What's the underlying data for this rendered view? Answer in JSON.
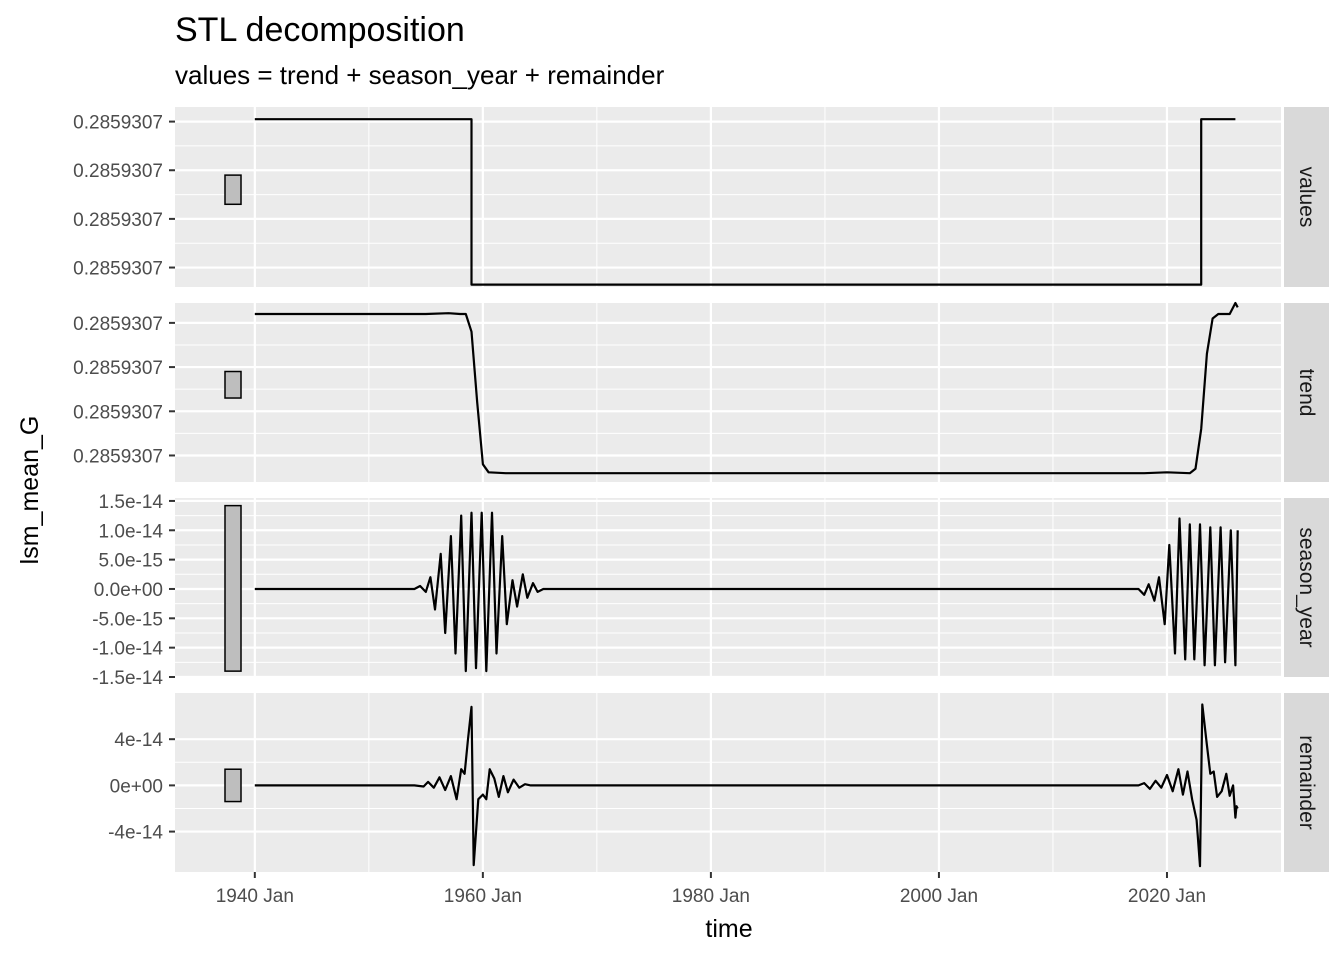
{
  "chart_data": {
    "type": "line",
    "title": "STL decomposition",
    "subtitle": "values = trend + season_year + remainder",
    "xlabel": "time",
    "ylabel": "lsm_mean_G",
    "x_ticks": [
      "1940 Jan",
      "1960 Jan",
      "1980 Jan",
      "2000 Jan",
      "2020 Jan"
    ],
    "x_tick_years": [
      1940,
      1960,
      1980,
      2000,
      2020
    ],
    "x_range": [
      1933,
      2030
    ],
    "panels": [
      {
        "name": "values",
        "y_ticks": [
          "0.2859307",
          "0.2859307",
          "0.2859307",
          "0.2859307"
        ],
        "y_tick_positions": [
          3,
          2,
          1,
          0
        ],
        "y_range": [
          -0.4,
          3.3
        ],
        "range_bar": [
          1.3,
          1.9
        ],
        "series": [
          {
            "x": 1940.0,
            "y": 3.05
          },
          {
            "x": 1959.0,
            "y": 3.05
          },
          {
            "x": 1959.0,
            "y": -0.35
          },
          {
            "x": 2023.0,
            "y": -0.35
          },
          {
            "x": 2023.0,
            "y": 3.05
          },
          {
            "x": 2026.0,
            "y": 3.05
          }
        ]
      },
      {
        "name": "trend",
        "y_ticks": [
          "0.2859307",
          "0.2859307",
          "0.2859307",
          "0.2859307"
        ],
        "y_tick_positions": [
          3,
          2,
          1,
          0
        ],
        "y_range": [
          -0.6,
          3.45
        ],
        "range_bar": [
          1.3,
          1.9
        ],
        "series": [
          {
            "x": 1940.0,
            "y": 3.2
          },
          {
            "x": 1955.0,
            "y": 3.2
          },
          {
            "x": 1957.0,
            "y": 3.22
          },
          {
            "x": 1958.0,
            "y": 3.2
          },
          {
            "x": 1958.5,
            "y": 3.2
          },
          {
            "x": 1959.0,
            "y": 2.8
          },
          {
            "x": 1959.5,
            "y": 1.2
          },
          {
            "x": 1960.0,
            "y": -0.2
          },
          {
            "x": 1960.5,
            "y": -0.38
          },
          {
            "x": 1962.0,
            "y": -0.4
          },
          {
            "x": 2018.0,
            "y": -0.4
          },
          {
            "x": 2020.0,
            "y": -0.38
          },
          {
            "x": 2022.0,
            "y": -0.4
          },
          {
            "x": 2022.5,
            "y": -0.3
          },
          {
            "x": 2023.0,
            "y": 0.6
          },
          {
            "x": 2023.5,
            "y": 2.3
          },
          {
            "x": 2024.0,
            "y": 3.1
          },
          {
            "x": 2024.5,
            "y": 3.2
          },
          {
            "x": 2025.5,
            "y": 3.2
          },
          {
            "x": 2026.0,
            "y": 3.45
          },
          {
            "x": 2026.2,
            "y": 3.35
          }
        ]
      },
      {
        "name": "season_year",
        "y_ticks": [
          "1.5e-14",
          "1.0e-14",
          "5.0e-15",
          "0.0e+00",
          "-5.0e-15",
          "-1.0e-14",
          "-1.5e-14"
        ],
        "y_tick_positions": [
          1.5e-14,
          1e-14,
          5e-15,
          0,
          -5e-15,
          -1e-14,
          -1.5e-14
        ],
        "y_range": [
          -1.5e-14,
          1.55e-14
        ],
        "range_bar": [
          -1.4e-14,
          1.42e-14
        ],
        "series": [
          {
            "x": 1940.0,
            "y": 0
          },
          {
            "x": 1954.0,
            "y": 0
          },
          {
            "x": 1954.5,
            "y": 5e-16
          },
          {
            "x": 1955.0,
            "y": -5e-16
          },
          {
            "x": 1955.4,
            "y": 2e-15
          },
          {
            "x": 1955.8,
            "y": -3.5e-15
          },
          {
            "x": 1956.3,
            "y": 6e-15
          },
          {
            "x": 1956.7,
            "y": -7.5e-15
          },
          {
            "x": 1957.2,
            "y": 9e-15
          },
          {
            "x": 1957.6,
            "y": -1.1e-14
          },
          {
            "x": 1958.1,
            "y": 1.25e-14
          },
          {
            "x": 1958.5,
            "y": -1.4e-14
          },
          {
            "x": 1959.0,
            "y": 1.3e-14
          },
          {
            "x": 1959.4,
            "y": -1.35e-14
          },
          {
            "x": 1959.9,
            "y": 1.3e-14
          },
          {
            "x": 1960.3,
            "y": -1.4e-14
          },
          {
            "x": 1960.8,
            "y": 1.3e-14
          },
          {
            "x": 1961.2,
            "y": -1.1e-14
          },
          {
            "x": 1961.7,
            "y": 9e-15
          },
          {
            "x": 1962.1,
            "y": -6e-15
          },
          {
            "x": 1962.6,
            "y": 1.5e-15
          },
          {
            "x": 1963.0,
            "y": -3e-15
          },
          {
            "x": 1963.5,
            "y": 2.5e-15
          },
          {
            "x": 1963.9,
            "y": -1.5e-15
          },
          {
            "x": 1964.4,
            "y": 1e-15
          },
          {
            "x": 1964.8,
            "y": -5e-16
          },
          {
            "x": 1965.3,
            "y": 0
          },
          {
            "x": 2017.5,
            "y": 0
          },
          {
            "x": 2018.0,
            "y": -1e-15
          },
          {
            "x": 2018.4,
            "y": 8e-16
          },
          {
            "x": 2018.9,
            "y": -2e-15
          },
          {
            "x": 2019.3,
            "y": 2e-15
          },
          {
            "x": 2019.8,
            "y": -6e-15
          },
          {
            "x": 2020.2,
            "y": 7.5e-15
          },
          {
            "x": 2020.7,
            "y": -1.1e-14
          },
          {
            "x": 2021.1,
            "y": 1.2e-14
          },
          {
            "x": 2021.6,
            "y": -1.2e-14
          },
          {
            "x": 2022.0,
            "y": 1.1e-14
          },
          {
            "x": 2022.4,
            "y": -1.2e-14
          },
          {
            "x": 2022.9,
            "y": 1.1e-14
          },
          {
            "x": 2023.3,
            "y": -1.3e-14
          },
          {
            "x": 2023.8,
            "y": 1.05e-14
          },
          {
            "x": 2024.2,
            "y": -1.3e-14
          },
          {
            "x": 2024.7,
            "y": 1.05e-14
          },
          {
            "x": 2025.1,
            "y": -1.25e-14
          },
          {
            "x": 2025.6,
            "y": 1e-14
          },
          {
            "x": 2026.0,
            "y": -1.3e-14
          },
          {
            "x": 2026.2,
            "y": 1e-14
          }
        ]
      },
      {
        "name": "remainder",
        "y_ticks": [
          "4e-14",
          "0e+00",
          "-4e-14"
        ],
        "y_tick_positions": [
          4e-14,
          0,
          -4e-14
        ],
        "y_range": [
          -7.5e-14,
          8e-14
        ],
        "range_bar": [
          -1.4e-14,
          1.4e-14
        ],
        "series": [
          {
            "x": 1940.0,
            "y": 0
          },
          {
            "x": 1954.0,
            "y": 0
          },
          {
            "x": 1954.8,
            "y": -1e-15
          },
          {
            "x": 1955.2,
            "y": 3e-15
          },
          {
            "x": 1955.7,
            "y": -2e-15
          },
          {
            "x": 1956.2,
            "y": 7e-15
          },
          {
            "x": 1956.7,
            "y": -4e-15
          },
          {
            "x": 1957.2,
            "y": 8e-15
          },
          {
            "x": 1957.7,
            "y": -1.2e-14
          },
          {
            "x": 1958.1,
            "y": 1.4e-14
          },
          {
            "x": 1958.4,
            "y": 1e-14
          },
          {
            "x": 1958.7,
            "y": 4e-14
          },
          {
            "x": 1959.0,
            "y": 6.8e-14
          },
          {
            "x": 1959.2,
            "y": -6.9e-14
          },
          {
            "x": 1959.6,
            "y": -1.2e-14
          },
          {
            "x": 1960.0,
            "y": -8e-15
          },
          {
            "x": 1960.3,
            "y": -1.2e-14
          },
          {
            "x": 1960.6,
            "y": 1.4e-14
          },
          {
            "x": 1961.0,
            "y": 6e-15
          },
          {
            "x": 1961.4,
            "y": -1e-14
          },
          {
            "x": 1961.8,
            "y": 8e-15
          },
          {
            "x": 1962.2,
            "y": -6e-15
          },
          {
            "x": 1962.7,
            "y": 5e-15
          },
          {
            "x": 1963.2,
            "y": -2e-15
          },
          {
            "x": 1963.7,
            "y": 1e-15
          },
          {
            "x": 1964.2,
            "y": 0
          },
          {
            "x": 2017.5,
            "y": 0
          },
          {
            "x": 2018.0,
            "y": 2e-15
          },
          {
            "x": 2018.5,
            "y": -3e-15
          },
          {
            "x": 2019.0,
            "y": 4e-15
          },
          {
            "x": 2019.5,
            "y": -2e-15
          },
          {
            "x": 2020.0,
            "y": 9e-15
          },
          {
            "x": 2020.5,
            "y": -5e-15
          },
          {
            "x": 2021.0,
            "y": 1.4e-14
          },
          {
            "x": 2021.4,
            "y": -8e-15
          },
          {
            "x": 2021.8,
            "y": 1.2e-14
          },
          {
            "x": 2022.2,
            "y": -1.2e-14
          },
          {
            "x": 2022.6,
            "y": -3e-14
          },
          {
            "x": 2022.9,
            "y": -7e-14
          },
          {
            "x": 2023.1,
            "y": 7e-14
          },
          {
            "x": 2023.5,
            "y": 3.5e-14
          },
          {
            "x": 2023.8,
            "y": 1e-14
          },
          {
            "x": 2024.1,
            "y": 1.2e-14
          },
          {
            "x": 2024.4,
            "y": -1e-14
          },
          {
            "x": 2024.8,
            "y": -5e-15
          },
          {
            "x": 2025.2,
            "y": 1e-14
          },
          {
            "x": 2025.5,
            "y": -9e-15
          },
          {
            "x": 2025.8,
            "y": 0
          },
          {
            "x": 2026.0,
            "y": -2.8e-14
          },
          {
            "x": 2026.1,
            "y": -1.8e-14
          },
          {
            "x": 2026.2,
            "y": -2e-14
          }
        ]
      }
    ],
    "grid": true,
    "colors": {
      "panel_bg": "#ebebeb",
      "grid": "#ffffff",
      "line": "#000000",
      "strip_bg": "#d9d9d9",
      "range_bar_fill": "#bebebe"
    }
  }
}
